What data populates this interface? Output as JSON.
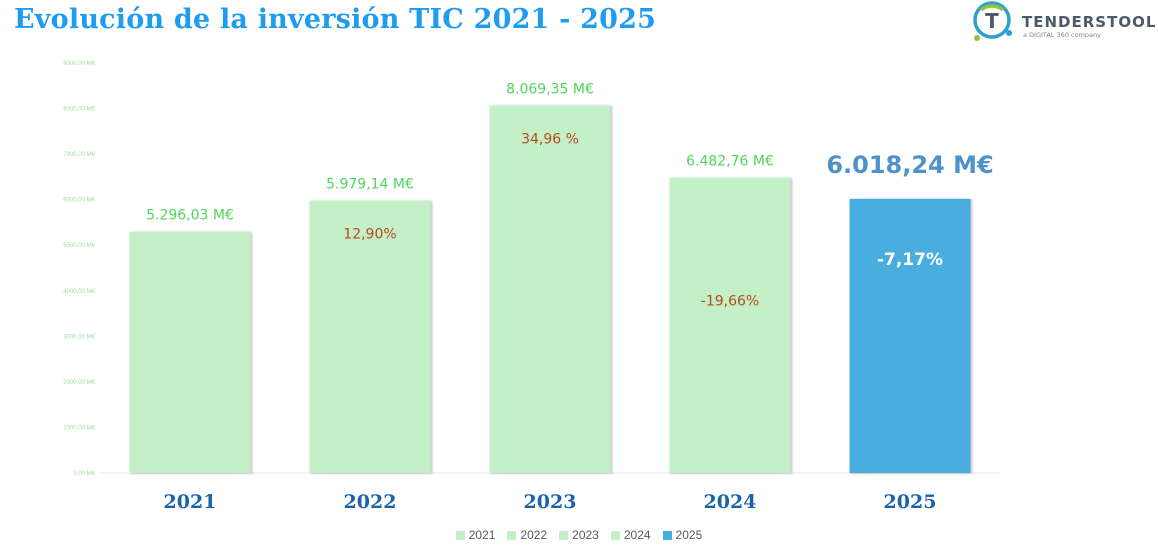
{
  "chart_data": {
    "type": "bar",
    "title": "Evolución de la inversión TIC 2021 - 2025",
    "categories": [
      "2021",
      "2022",
      "2023",
      "2024",
      "2025"
    ],
    "values": [
      5296.03,
      5979.14,
      8069.35,
      6482.76,
      6018.24
    ],
    "value_labels": [
      "5.296,03 M€",
      "5.979,14 M€",
      "8.069,35 M€",
      "6.482,76 M€",
      "6.018,24 M€"
    ],
    "change_labels": [
      "",
      "12,90%",
      "34,96 %",
      "-19,66%",
      "-7,17%"
    ],
    "ylim": [
      0,
      9000
    ],
    "y_ticks": [
      0,
      1000,
      2000,
      3000,
      4000,
      5000,
      6000,
      7000,
      8000,
      9000
    ],
    "y_tick_labels": [
      "0,00 M€",
      "1000,00 M€",
      "2000,00 M€",
      "3000,00 M€",
      "4000,00 M€",
      "5000,00 M€",
      "6000,00 M€",
      "7000,00 M€",
      "8000,00 M€",
      "9000,00 M€"
    ],
    "legend": [
      "2021",
      "2022",
      "2023",
      "2024",
      "2025"
    ],
    "legend_position": "bottom",
    "grid": false,
    "colors": {
      "bar": "#c4f0c8",
      "highlight_bar": "#48ade0",
      "value_label": "#4fd65a",
      "highlight_value_label": "#4f91c9",
      "change_label": "#b8491a",
      "highlight_change_label": "#ffffff",
      "category_label": "#1a63a8",
      "tick_label": "#9ee09e",
      "title": "#1e9cf0"
    }
  },
  "logo": {
    "name": "TENDERSTOOL",
    "tagline": "a DIGITAL 360 company"
  }
}
